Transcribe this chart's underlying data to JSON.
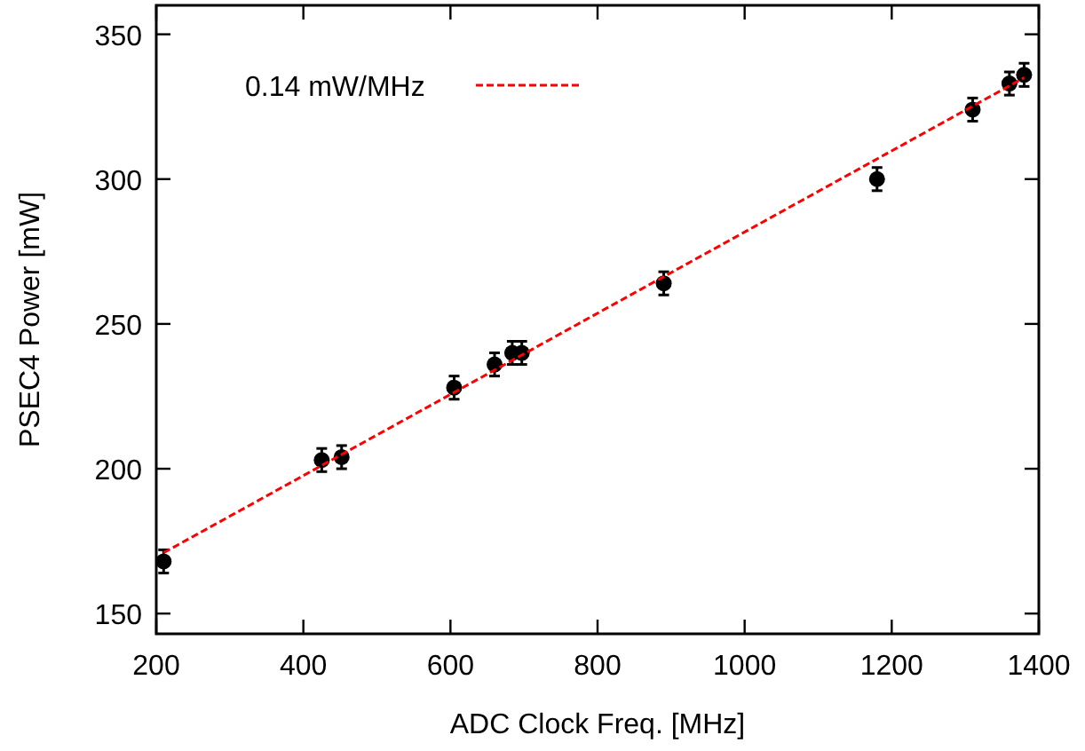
{
  "chart_data": {
    "type": "scatter",
    "xlabel": "ADC Clock Freq. [MHz]",
    "ylabel": "PSEC4 Power [mW]",
    "xlim": [
      200,
      1400
    ],
    "ylim": [
      143,
      360
    ],
    "xticks": [
      200,
      400,
      600,
      800,
      1000,
      1200,
      1400
    ],
    "yticks": [
      150,
      200,
      250,
      300,
      350
    ],
    "grid": false,
    "legend": "top left",
    "marker": "circle",
    "series": [
      {
        "color": "#000000",
        "x": [
          210,
          425,
          452,
          605,
          660,
          684,
          697,
          890,
          1180,
          1310,
          1360,
          1380
        ],
        "values": [
          168,
          203,
          204,
          228,
          236,
          240,
          240,
          264,
          300,
          324,
          333,
          336
        ],
        "errors": [
          4,
          4,
          4,
          4,
          4,
          4,
          4,
          4,
          4,
          4,
          4,
          4
        ]
      },
      {
        "type": "line",
        "name": "0.14 mW/MHz",
        "color": "#ff0000",
        "line_style": "dashed",
        "marker": "none",
        "x": [
          210,
          1380
        ],
        "values": [
          171,
          335
        ]
      }
    ]
  }
}
